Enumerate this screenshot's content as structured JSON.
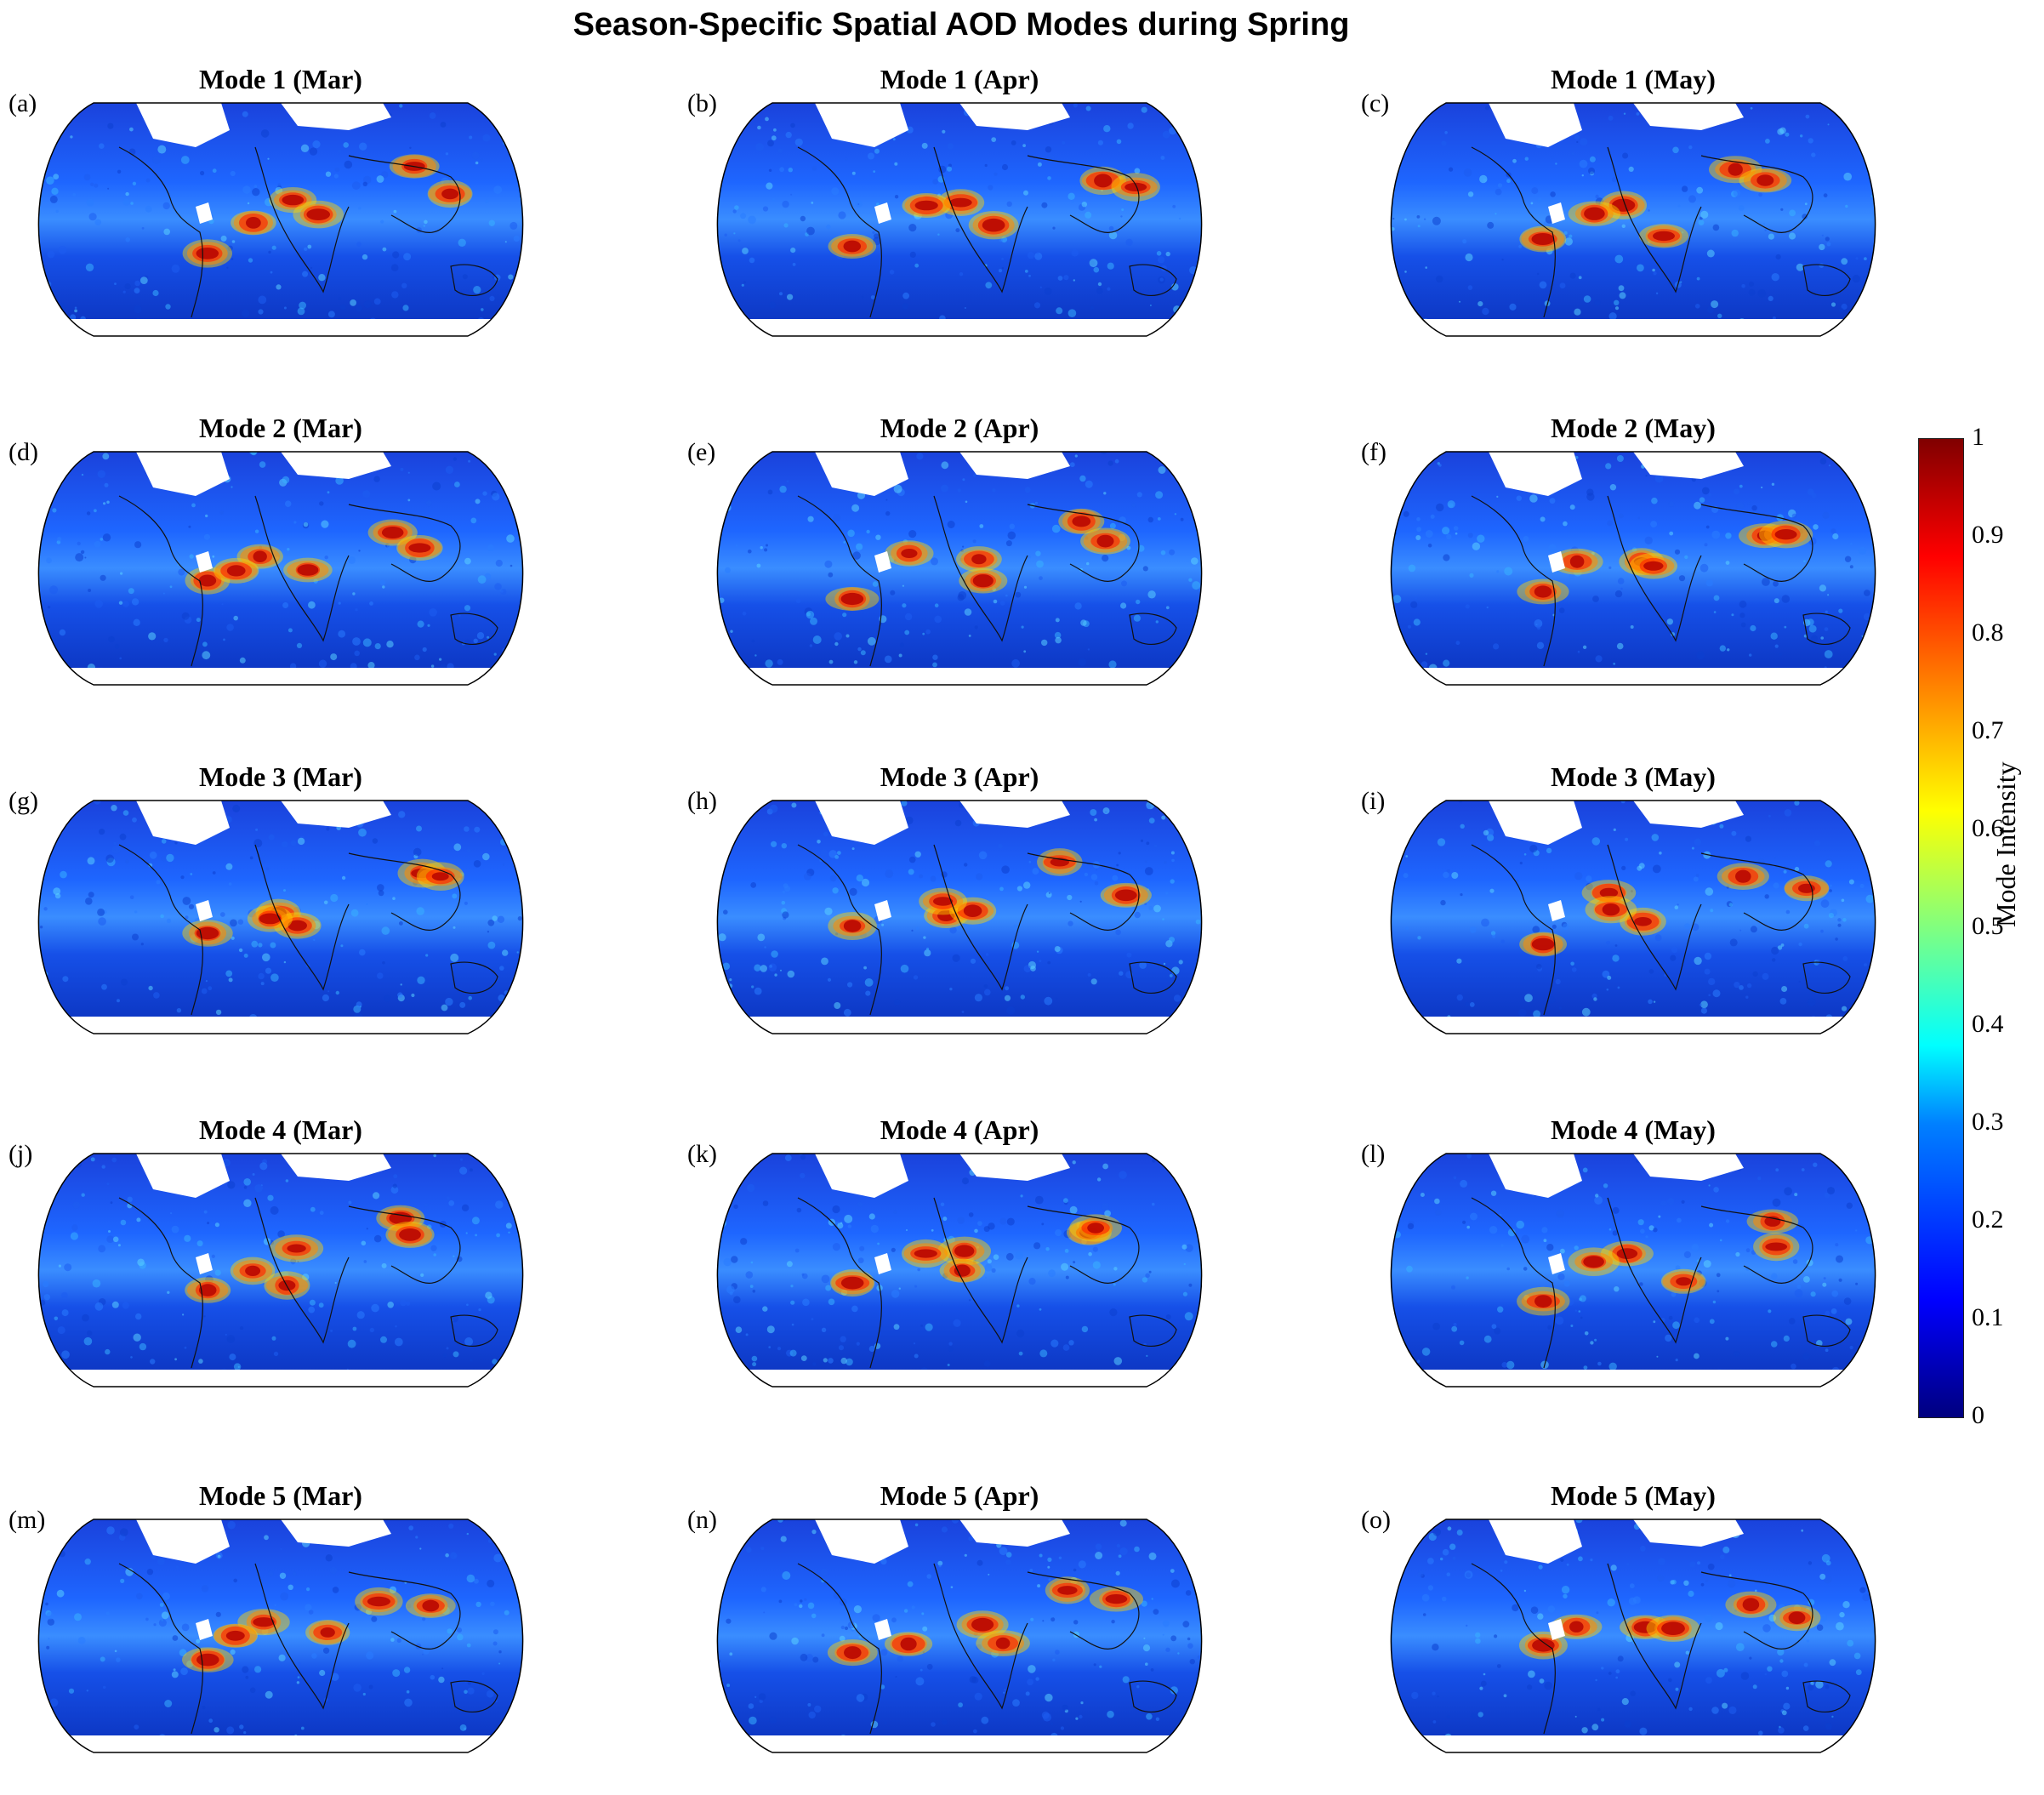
{
  "title": "Season-Specific Spatial AOD Modes during Spring",
  "panels": [
    {
      "letter": "(a)",
      "title": "Mode 1 (Mar)"
    },
    {
      "letter": "(b)",
      "title": "Mode 1 (Apr)"
    },
    {
      "letter": "(c)",
      "title": "Mode 1 (May)"
    },
    {
      "letter": "(d)",
      "title": "Mode 2 (Mar)"
    },
    {
      "letter": "(e)",
      "title": "Mode 2 (Apr)"
    },
    {
      "letter": "(f)",
      "title": "Mode 2 (May)"
    },
    {
      "letter": "(g)",
      "title": "Mode 3 (Mar)"
    },
    {
      "letter": "(h)",
      "title": "Mode 3 (Apr)"
    },
    {
      "letter": "(i)",
      "title": "Mode 3 (May)"
    },
    {
      "letter": "(j)",
      "title": "Mode 4 (Mar)"
    },
    {
      "letter": "(k)",
      "title": "Mode 4 (Apr)"
    },
    {
      "letter": "(l)",
      "title": "Mode 4 (May)"
    },
    {
      "letter": "(m)",
      "title": "Mode 5 (Mar)"
    },
    {
      "letter": "(n)",
      "title": "Mode 5 (Apr)"
    },
    {
      "letter": "(o)",
      "title": "Mode 5 (May)"
    }
  ],
  "colorbar": {
    "label": "Mode Intensity",
    "ticks": [
      "0",
      "0.1",
      "0.2",
      "0.3",
      "0.4",
      "0.5",
      "0.6",
      "0.7",
      "0.8",
      "0.9",
      "1"
    ],
    "colormap": "jet",
    "range": [
      0,
      1
    ]
  }
}
